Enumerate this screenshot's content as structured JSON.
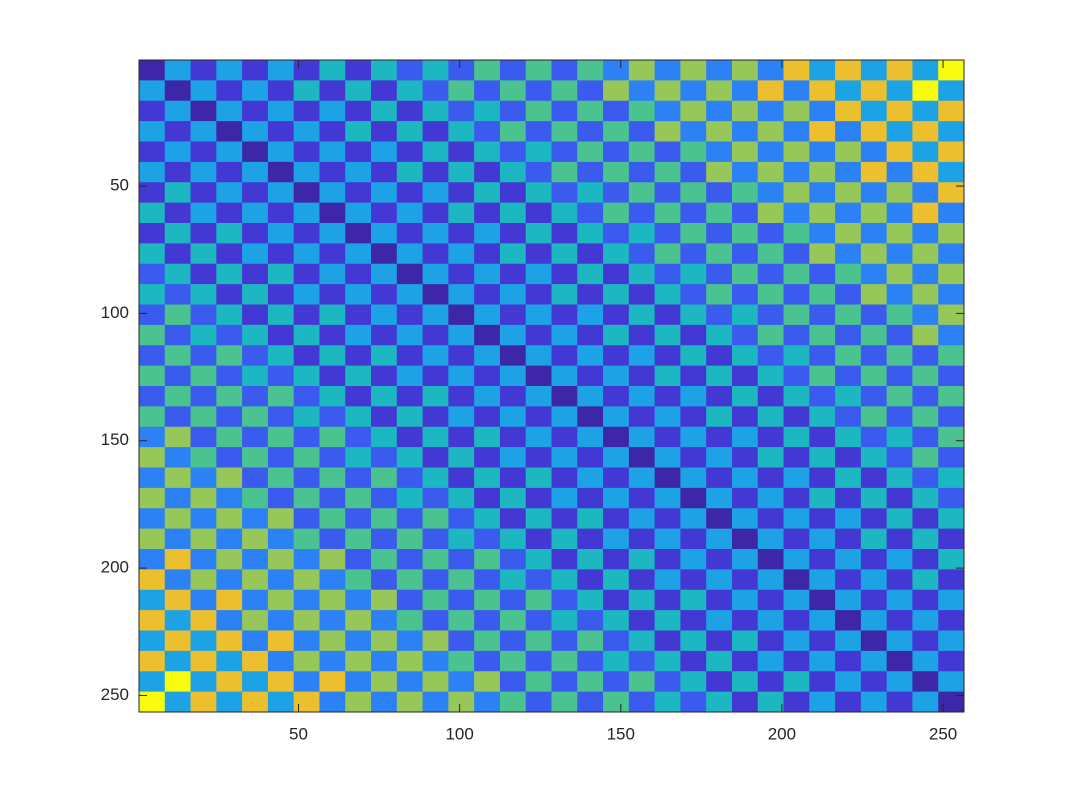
{
  "chart_data": {
    "type": "heatmap",
    "x": [
      4.5,
      12.5,
      20.5,
      28.5,
      36.5,
      44.5,
      52.5,
      60.5,
      68.5,
      76.5,
      84.5,
      92.5,
      100.5,
      108.5,
      116.5,
      124.5,
      132.5,
      140.5,
      148.5,
      156.5,
      164.5,
      172.5,
      180.5,
      188.5,
      196.5,
      204.5,
      212.5,
      220.5,
      228.5,
      236.5,
      244.5,
      252.5
    ],
    "y": [
      4.5,
      12.5,
      20.5,
      28.5,
      36.5,
      44.5,
      52.5,
      60.5,
      68.5,
      76.5,
      84.5,
      92.5,
      100.5,
      108.5,
      116.5,
      124.5,
      132.5,
      140.5,
      148.5,
      156.5,
      164.5,
      172.5,
      180.5,
      188.5,
      196.5,
      204.5,
      212.5,
      220.5,
      228.5,
      236.5,
      244.5,
      252.5
    ],
    "xlim": [
      0.5,
      256.5
    ],
    "ylim": [
      0.5,
      256.5
    ],
    "y_reversed": true,
    "xticks": [
      50,
      100,
      150,
      200,
      250
    ],
    "yticks": [
      50,
      100,
      150,
      200,
      250
    ],
    "clim": [
      0,
      9
    ],
    "colormap": "parula",
    "z": [
      [
        0,
        4,
        1,
        4,
        1,
        4,
        1,
        5,
        1,
        5,
        2,
        5,
        2,
        6,
        2,
        6,
        2,
        6,
        3,
        7,
        3,
        7,
        3,
        7,
        3,
        8,
        4,
        8,
        4,
        8,
        4,
        9
      ],
      [
        4,
        0,
        4,
        1,
        4,
        1,
        5,
        1,
        5,
        1,
        5,
        2,
        6,
        2,
        6,
        2,
        6,
        2,
        7,
        3,
        7,
        3,
        7,
        3,
        8,
        3,
        8,
        4,
        8,
        4,
        9,
        4
      ],
      [
        1,
        4,
        0,
        4,
        1,
        4,
        1,
        4,
        1,
        5,
        1,
        5,
        2,
        5,
        2,
        6,
        2,
        6,
        2,
        6,
        3,
        7,
        3,
        7,
        3,
        7,
        3,
        8,
        4,
        8,
        4,
        8
      ],
      [
        4,
        1,
        4,
        0,
        4,
        1,
        4,
        1,
        5,
        1,
        5,
        1,
        5,
        2,
        6,
        2,
        6,
        2,
        6,
        2,
        7,
        3,
        7,
        3,
        7,
        3,
        8,
        3,
        8,
        4,
        8,
        4
      ],
      [
        1,
        4,
        1,
        4,
        0,
        4,
        1,
        4,
        1,
        4,
        1,
        5,
        1,
        5,
        2,
        5,
        2,
        6,
        2,
        6,
        2,
        6,
        3,
        7,
        3,
        7,
        3,
        7,
        3,
        8,
        4,
        8
      ],
      [
        4,
        1,
        4,
        1,
        4,
        0,
        4,
        1,
        4,
        1,
        5,
        1,
        5,
        1,
        5,
        2,
        6,
        2,
        6,
        2,
        6,
        2,
        7,
        3,
        7,
        3,
        7,
        3,
        8,
        3,
        8,
        4
      ],
      [
        1,
        5,
        1,
        4,
        1,
        4,
        0,
        4,
        1,
        4,
        1,
        4,
        1,
        5,
        1,
        5,
        2,
        5,
        2,
        6,
        2,
        6,
        2,
        6,
        3,
        7,
        3,
        7,
        3,
        7,
        3,
        8
      ],
      [
        5,
        1,
        4,
        1,
        4,
        1,
        4,
        0,
        4,
        1,
        4,
        1,
        5,
        1,
        5,
        1,
        5,
        2,
        6,
        2,
        6,
        2,
        6,
        2,
        7,
        3,
        7,
        3,
        7,
        3,
        8,
        3
      ],
      [
        1,
        5,
        1,
        5,
        1,
        4,
        1,
        4,
        0,
        4,
        1,
        4,
        1,
        4,
        1,
        5,
        1,
        5,
        2,
        5,
        2,
        6,
        2,
        6,
        2,
        6,
        3,
        7,
        3,
        7,
        3,
        7
      ],
      [
        5,
        1,
        5,
        1,
        4,
        1,
        4,
        1,
        4,
        0,
        4,
        1,
        4,
        1,
        5,
        1,
        5,
        1,
        5,
        2,
        6,
        2,
        6,
        2,
        6,
        2,
        7,
        3,
        7,
        3,
        7,
        3
      ],
      [
        2,
        5,
        1,
        5,
        1,
        5,
        1,
        4,
        1,
        4,
        0,
        4,
        1,
        4,
        1,
        4,
        1,
        5,
        1,
        5,
        2,
        5,
        2,
        6,
        2,
        6,
        2,
        6,
        3,
        7,
        3,
        7
      ],
      [
        5,
        2,
        5,
        1,
        5,
        1,
        4,
        1,
        4,
        1,
        4,
        0,
        4,
        1,
        4,
        1,
        5,
        1,
        5,
        1,
        5,
        2,
        6,
        2,
        6,
        2,
        6,
        2,
        7,
        3,
        7,
        3
      ],
      [
        2,
        6,
        2,
        5,
        1,
        5,
        1,
        5,
        1,
        4,
        1,
        4,
        0,
        4,
        1,
        4,
        1,
        4,
        1,
        5,
        1,
        5,
        2,
        5,
        2,
        6,
        2,
        6,
        2,
        6,
        3,
        7
      ],
      [
        6,
        2,
        5,
        2,
        5,
        1,
        5,
        1,
        4,
        1,
        4,
        1,
        4,
        0,
        4,
        1,
        4,
        1,
        5,
        1,
        5,
        1,
        5,
        2,
        6,
        2,
        6,
        2,
        6,
        2,
        7,
        3
      ],
      [
        2,
        6,
        2,
        6,
        2,
        5,
        1,
        5,
        1,
        5,
        1,
        4,
        1,
        4,
        0,
        4,
        1,
        4,
        1,
        4,
        1,
        5,
        1,
        5,
        2,
        5,
        2,
        6,
        2,
        6,
        2,
        6
      ],
      [
        6,
        2,
        6,
        2,
        5,
        2,
        5,
        1,
        5,
        1,
        4,
        1,
        4,
        1,
        4,
        0,
        4,
        1,
        4,
        1,
        5,
        1,
        5,
        1,
        5,
        2,
        6,
        2,
        6,
        2,
        6,
        2
      ],
      [
        2,
        6,
        2,
        6,
        2,
        6,
        2,
        5,
        1,
        5,
        1,
        5,
        1,
        4,
        1,
        4,
        0,
        4,
        1,
        4,
        1,
        4,
        1,
        5,
        1,
        5,
        2,
        5,
        2,
        6,
        2,
        6
      ],
      [
        6,
        2,
        6,
        2,
        6,
        2,
        5,
        2,
        5,
        1,
        5,
        1,
        4,
        1,
        4,
        1,
        4,
        0,
        4,
        1,
        4,
        1,
        5,
        1,
        5,
        1,
        5,
        2,
        6,
        2,
        6,
        2
      ],
      [
        3,
        7,
        2,
        6,
        2,
        6,
        2,
        6,
        2,
        5,
        1,
        5,
        1,
        5,
        1,
        4,
        1,
        4,
        0,
        4,
        1,
        4,
        1,
        4,
        1,
        5,
        1,
        5,
        2,
        5,
        2,
        6
      ],
      [
        7,
        3,
        6,
        2,
        6,
        2,
        6,
        2,
        5,
        2,
        5,
        1,
        5,
        1,
        4,
        1,
        4,
        1,
        4,
        0,
        4,
        1,
        4,
        1,
        5,
        1,
        5,
        1,
        5,
        2,
        6,
        2
      ],
      [
        3,
        7,
        3,
        7,
        2,
        6,
        2,
        6,
        2,
        6,
        2,
        5,
        1,
        5,
        1,
        5,
        1,
        4,
        1,
        4,
        0,
        4,
        1,
        4,
        1,
        4,
        1,
        5,
        1,
        5,
        2,
        5
      ],
      [
        7,
        3,
        7,
        3,
        6,
        2,
        6,
        2,
        6,
        2,
        5,
        2,
        5,
        1,
        5,
        1,
        4,
        1,
        4,
        1,
        4,
        0,
        4,
        1,
        4,
        1,
        5,
        1,
        5,
        1,
        5,
        2
      ],
      [
        3,
        7,
        3,
        7,
        3,
        7,
        2,
        6,
        2,
        6,
        2,
        6,
        2,
        5,
        1,
        5,
        1,
        5,
        1,
        4,
        1,
        4,
        0,
        4,
        1,
        4,
        1,
        4,
        1,
        5,
        1,
        5
      ],
      [
        7,
        3,
        7,
        3,
        7,
        3,
        6,
        2,
        6,
        2,
        6,
        2,
        5,
        2,
        5,
        1,
        5,
        1,
        4,
        1,
        4,
        1,
        4,
        0,
        4,
        1,
        4,
        1,
        5,
        1,
        5,
        1
      ],
      [
        3,
        8,
        3,
        7,
        3,
        7,
        3,
        7,
        2,
        6,
        2,
        6,
        2,
        6,
        2,
        5,
        1,
        5,
        1,
        5,
        1,
        4,
        1,
        4,
        0,
        4,
        1,
        4,
        1,
        4,
        1,
        5
      ],
      [
        8,
        3,
        7,
        3,
        7,
        3,
        7,
        3,
        6,
        2,
        6,
        2,
        6,
        2,
        5,
        2,
        5,
        1,
        5,
        1,
        4,
        1,
        4,
        1,
        4,
        0,
        4,
        1,
        4,
        1,
        5,
        1
      ],
      [
        4,
        8,
        3,
        8,
        3,
        7,
        3,
        7,
        3,
        7,
        2,
        6,
        2,
        6,
        2,
        6,
        2,
        5,
        1,
        5,
        1,
        5,
        1,
        4,
        1,
        4,
        0,
        4,
        1,
        4,
        1,
        4
      ],
      [
        8,
        4,
        8,
        3,
        7,
        3,
        7,
        3,
        7,
        3,
        6,
        2,
        6,
        2,
        6,
        2,
        5,
        2,
        5,
        1,
        5,
        1,
        4,
        1,
        4,
        1,
        4,
        0,
        4,
        1,
        4,
        1
      ],
      [
        4,
        8,
        4,
        8,
        3,
        8,
        3,
        7,
        3,
        7,
        3,
        7,
        2,
        6,
        2,
        6,
        2,
        6,
        2,
        5,
        1,
        5,
        1,
        5,
        1,
        4,
        1,
        4,
        0,
        4,
        1,
        4
      ],
      [
        8,
        4,
        8,
        4,
        8,
        3,
        7,
        3,
        7,
        3,
        7,
        3,
        6,
        2,
        6,
        2,
        6,
        2,
        5,
        2,
        5,
        1,
        5,
        1,
        4,
        1,
        4,
        1,
        4,
        0,
        4,
        1
      ],
      [
        4,
        9,
        4,
        8,
        4,
        8,
        3,
        8,
        3,
        7,
        3,
        7,
        3,
        7,
        2,
        6,
        2,
        6,
        2,
        6,
        2,
        5,
        1,
        5,
        1,
        5,
        1,
        4,
        1,
        4,
        0,
        4
      ],
      [
        9,
        4,
        8,
        4,
        8,
        4,
        8,
        3,
        7,
        3,
        7,
        3,
        7,
        3,
        6,
        2,
        6,
        2,
        6,
        2,
        5,
        2,
        5,
        1,
        5,
        1,
        4,
        1,
        4,
        1,
        4,
        0
      ]
    ]
  }
}
